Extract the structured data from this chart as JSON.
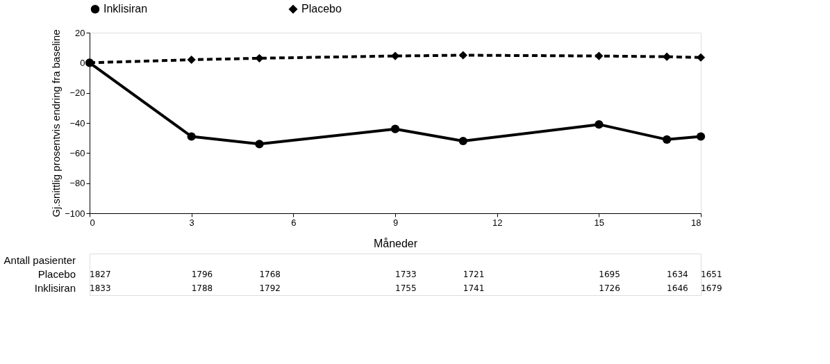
{
  "chart_data": {
    "type": "line",
    "xlabel": "Måneder",
    "ylabel": "Gj.snittlig prosentvis endring fra baseline",
    "x": [
      0,
      3,
      5,
      9,
      11,
      15,
      17,
      18
    ],
    "xlim": [
      0,
      18
    ],
    "xticks": [
      0,
      3,
      6,
      9,
      12,
      15,
      18
    ],
    "ylim": [
      -100,
      20
    ],
    "yticks": [
      -100,
      -80,
      -60,
      -40,
      -20,
      0,
      20
    ],
    "grid": false,
    "legend": "top",
    "series": [
      {
        "name": "Inklisiran",
        "color": "#000000",
        "marker": "circle",
        "line_style": "solid",
        "values": [
          0,
          -49,
          -54,
          -44,
          -52,
          -41,
          -51,
          -49
        ]
      },
      {
        "name": "Placebo",
        "color": "#000000",
        "marker": "diamond",
        "line_style": "dashed",
        "values": [
          0,
          2,
          3,
          4.5,
          5,
          4.5,
          4,
          3.5
        ]
      }
    ],
    "annotations": [
      "Antall pasienter",
      "Placebo",
      "1827",
      "1796",
      "1768",
      "1733",
      "1721",
      "1695",
      "1634",
      "1651",
      "Inklisiran",
      "1833",
      "1788",
      "1792",
      "1755",
      "1741",
      "1726",
      "1646",
      "1679"
    ]
  }
}
